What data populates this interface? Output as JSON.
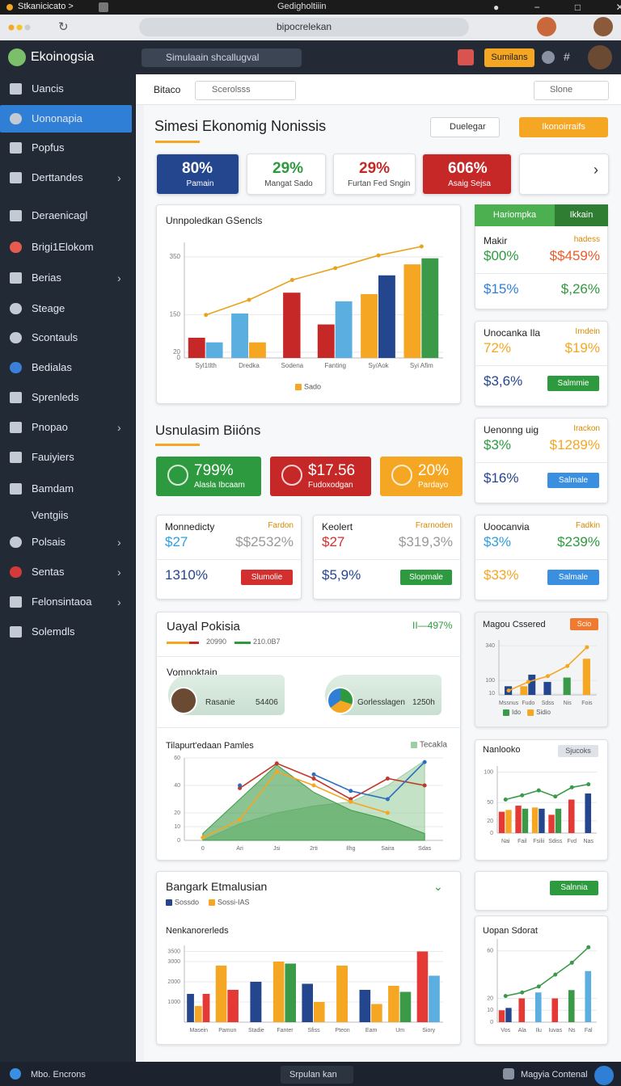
{
  "browser": {
    "tab": "Stkanicicato >",
    "title": "Gedigholtiiin",
    "url": "bipocrelekan"
  },
  "sidebar": {
    "brand": "Ekoinogsia",
    "items": [
      {
        "label": "Uancis"
      },
      {
        "label": "Uononapia",
        "active": true
      },
      {
        "label": "Popfus"
      },
      {
        "label": "Derttandes",
        "submenu": true
      },
      {
        "label": "Deraenicagl"
      },
      {
        "label": "Brigi1Elokom"
      },
      {
        "label": "Berias",
        "submenu": true
      },
      {
        "label": "Steage"
      },
      {
        "label": "Scontauls"
      },
      {
        "label": "Bedialas"
      },
      {
        "label": "Sprenleds"
      },
      {
        "label": "Pnopao",
        "submenu": true
      },
      {
        "label": "Fauiyiers"
      },
      {
        "label": "Bamdam"
      },
      {
        "label": "Ventgiis"
      },
      {
        "label": "Polsais",
        "submenu": true
      },
      {
        "label": "Sentas",
        "submenu": true
      },
      {
        "label": "Felonsintaoa",
        "submenu": true
      },
      {
        "label": "Solemdls"
      }
    ]
  },
  "topbar": {
    "search": "Simulaain shcallugval",
    "button": "Sumilans"
  },
  "toolbar": {
    "label": "Bitaco",
    "search": "Scerolsss",
    "sort": "Slone"
  },
  "header": {
    "title": "Simesi Ekonomig Nonissis",
    "dropdown": "Duelegar",
    "button": "Ikonoirraifs"
  },
  "kpis": [
    {
      "value": "80%",
      "label": "Pamain"
    },
    {
      "value": "29%",
      "label": "Mangat Sado"
    },
    {
      "value": "29%",
      "label": "Furtan Fed Sngin"
    },
    {
      "value": "606%",
      "label": "Asaig Sejsa"
    }
  ],
  "charts": [
    {
      "type": "combo",
      "title": "Unnpoledkan GSencls",
      "categories": [
        "Syl1tlth",
        "Dredka",
        "Sodena",
        "Fanting",
        "Sy/Aok",
        "Syi Afim"
      ],
      "ylim": [
        0,
        400
      ],
      "yticks": [
        0,
        20,
        150,
        350
      ],
      "series": [
        {
          "kind": "bar",
          "color": "#c62828",
          "values": [
            70,
            null,
            226,
            116,
            null,
            null
          ]
        },
        {
          "kind": "bar",
          "color": "#5aaee0",
          "values": [
            54,
            154,
            null,
            196,
            null,
            null
          ]
        },
        {
          "name": "Sado",
          "kind": "bar",
          "color": "#f5a623",
          "values": [
            null,
            54,
            null,
            null,
            221,
            324
          ]
        },
        {
          "kind": "bar",
          "color": "#24468f",
          "values": [
            null,
            null,
            null,
            null,
            286,
            null
          ]
        },
        {
          "kind": "bar",
          "color": "#3a9a48",
          "values": [
            null,
            null,
            null,
            null,
            null,
            345
          ]
        },
        {
          "kind": "line",
          "color": "#e8a31c",
          "values": [
            149,
            201,
            270,
            311,
            355,
            386
          ]
        }
      ]
    },
    {
      "type": "combo",
      "title": "Magou Cssered",
      "button": "Scio",
      "categories": [
        "Mssnus",
        "Fudo",
        "Sdss",
        "Nis",
        "Fois"
      ],
      "ylim": [
        0,
        380
      ],
      "yticks": [
        10,
        100,
        340
      ],
      "series": [
        {
          "name": "Ido",
          "kind": "bar",
          "color": "#3a9a48",
          "values": [
            null,
            null,
            null,
            120,
            null
          ]
        },
        {
          "name": "Sidio",
          "kind": "bar",
          "color": "#f5a623",
          "values": [
            null,
            60,
            null,
            null,
            250
          ]
        },
        {
          "kind": "bar",
          "color": "#24468f",
          "values": [
            60,
            140,
            90,
            null,
            null
          ]
        },
        {
          "kind": "line",
          "color": "#f5a623",
          "values": [
            30,
            90,
            130,
            200,
            330
          ]
        }
      ]
    },
    {
      "type": "combo",
      "title": "Tilapurt'edaan Pamles",
      "categories": [
        "0",
        "Ari",
        "Jsi",
        "2rti",
        "Ilhg",
        "Saira",
        "Sdas"
      ],
      "ylim": [
        0,
        60
      ],
      "yticks": [
        0,
        10,
        20,
        40,
        60
      ],
      "series": [
        {
          "name": "Tecakla",
          "kind": "area",
          "color": "#9ccf9f",
          "values": [
            0,
            12,
            20,
            25,
            28,
            40,
            58
          ]
        },
        {
          "kind": "area",
          "color": "#3f9b4a",
          "values": [
            5,
            30,
            55,
            35,
            22,
            15,
            5
          ]
        },
        {
          "kind": "line",
          "color": "#c0392b",
          "values": [
            null,
            38,
            56,
            45,
            30,
            45,
            40
          ]
        },
        {
          "kind": "line",
          "color": "#2f6fc0",
          "values": [
            null,
            40,
            null,
            48,
            36,
            30,
            57
          ]
        },
        {
          "kind": "line",
          "color": "#f5a623",
          "values": [
            2,
            15,
            50,
            40,
            28,
            20,
            null
          ]
        }
      ]
    },
    {
      "type": "combo",
      "title": "Nanlooko",
      "badge": "Sjucoks",
      "categories": [
        "Nai",
        "Fail",
        "Fsilii",
        "Sdiss",
        "Fvd",
        "Nas"
      ],
      "ylim": [
        0,
        110
      ],
      "yticks": [
        0,
        20,
        50,
        100
      ],
      "series": [
        {
          "kind": "bar",
          "color": "#e53935",
          "values": [
            35,
            45,
            null,
            30,
            55,
            null
          ]
        },
        {
          "kind": "bar",
          "color": "#f5a623",
          "values": [
            38,
            null,
            42,
            null,
            null,
            null
          ]
        },
        {
          "kind": "bar",
          "color": "#3a9a48",
          "values": [
            null,
            40,
            null,
            40,
            null,
            null
          ]
        },
        {
          "kind": "bar",
          "color": "#24468f",
          "values": [
            null,
            null,
            40,
            null,
            null,
            65
          ]
        },
        {
          "kind": "line",
          "color": "#3a9a48",
          "values": [
            55,
            62,
            70,
            60,
            75,
            80
          ]
        }
      ]
    },
    {
      "type": "combo",
      "title": "Bangark Etmalusian",
      "subtitle": "Nenkanorerleds",
      "categories": [
        "Masein",
        "Pamun",
        "Stadie",
        "Fanter",
        "Sfiss",
        "Pteon",
        "Eam",
        "Um",
        "Siory"
      ],
      "ylim": [
        0,
        3800
      ],
      "yticks": [
        1000,
        2000,
        3000,
        3500
      ],
      "series": [
        {
          "name": "Sossdo",
          "kind": "bar",
          "color": "#24468f",
          "values": [
            1400,
            null,
            2000,
            null,
            1900,
            null,
            1600,
            null,
            null
          ]
        },
        {
          "name": "Sossi-IAS",
          "kind": "bar",
          "color": "#f5a623",
          "values": [
            800,
            2800,
            null,
            3000,
            1000,
            2800,
            900,
            1800,
            null
          ]
        },
        {
          "kind": "bar",
          "color": "#e53935",
          "values": [
            1400,
            1600,
            null,
            null,
            null,
            null,
            null,
            null,
            3500
          ]
        },
        {
          "kind": "bar",
          "color": "#3a9a48",
          "values": [
            null,
            null,
            null,
            2900,
            null,
            null,
            null,
            1500,
            null
          ]
        },
        {
          "kind": "bar",
          "color": "#5aaee0",
          "values": [
            null,
            null,
            null,
            null,
            null,
            null,
            null,
            null,
            2300
          ]
        }
      ]
    },
    {
      "type": "combo",
      "title": "Uopan Sdorat",
      "categories": [
        "Vos",
        "Ala",
        "Ilu",
        "Iuvas",
        "Ns",
        "Fal"
      ],
      "ylim": [
        0,
        70
      ],
      "yticks": [
        0,
        10,
        20,
        60
      ],
      "series": [
        {
          "kind": "bar",
          "color": "#e53935",
          "values": [
            10,
            20,
            null,
            20,
            null,
            null
          ]
        },
        {
          "kind": "bar",
          "color": "#24468f",
          "values": [
            12,
            null,
            null,
            null,
            null,
            null
          ]
        },
        {
          "kind": "bar",
          "color": "#5aaee0",
          "values": [
            null,
            null,
            25,
            null,
            null,
            43
          ]
        },
        {
          "kind": "bar",
          "color": "#3a9a48",
          "values": [
            null,
            null,
            null,
            null,
            27,
            null
          ]
        },
        {
          "kind": "line",
          "color": "#3a9a48",
          "values": [
            22,
            25,
            30,
            40,
            50,
            63
          ]
        }
      ]
    }
  ],
  "side_cards": [
    {
      "tabs": [
        "Hariompka",
        "Ikkain"
      ],
      "title": "Makir",
      "tag": "hadess",
      "a": "$00%",
      "b": "$$459%",
      "c": "$15%",
      "d": "$,26%"
    },
    {
      "title": "Unocanka Ila",
      "tag": "Irndein",
      "a": "72%",
      "b": "$19%",
      "c": "$3,6%",
      "button": "Salmmie"
    },
    {
      "title": "Uenonng uig",
      "tag": "Irackon",
      "a": "$3%",
      "b": "$1289%",
      "c": "$16%",
      "button": "Salmale"
    },
    {
      "title": "Uoocanvia",
      "tag": "Fadkin",
      "a": "$3%",
      "b": "$239%",
      "c": "$33%",
      "button": "Salmale"
    }
  ],
  "side_button": "Salnnia",
  "section": {
    "title": "Usnulasim Biións",
    "tiles": [
      {
        "value": "799%",
        "label": "Alasla Ibcaam"
      },
      {
        "value": "$17.56",
        "label": "Fudoxodgan"
      },
      {
        "value": "20%",
        "label": "Pardayo"
      }
    ],
    "cards": [
      {
        "title": "Monnedicty",
        "tag": "Fardon",
        "a": "$27",
        "b": "$$2532%",
        "c": "1310%",
        "button": "Slumolie"
      },
      {
        "title": "Keolert",
        "tag": "Frarnoden",
        "a": "$27",
        "b": "$319,3%",
        "c": "$5,9%",
        "button": "Slopmale"
      }
    ]
  },
  "profile_card": {
    "title": "Uayal Pokisia",
    "change": "II—497%",
    "legend": [
      "20990",
      "210.0B7"
    ],
    "subtitle": "Vomnoktain",
    "people": [
      {
        "name": "Rasanie",
        "value": "54406"
      },
      {
        "name": "Gorlesslagen",
        "value": "1250h"
      }
    ]
  },
  "footer": {
    "left": "Mbo. Encrons",
    "center": "Srpulan kan",
    "right": "Magyia Contenal"
  }
}
